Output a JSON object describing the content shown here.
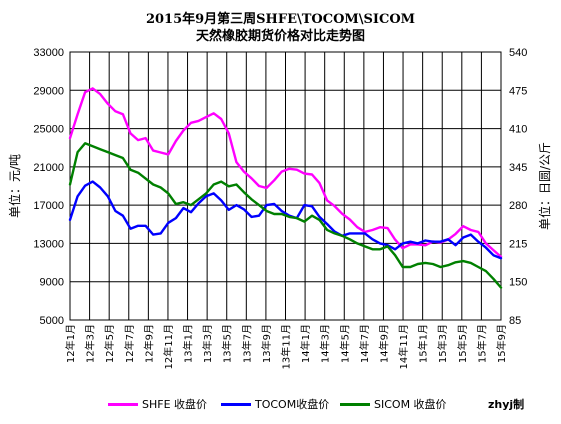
{
  "chart_data": {
    "type": "line",
    "title": "2015年9月第三周SHFE\\TOCOM\\SICOM",
    "subtitle": "天然橡胶期货价格对比走势图",
    "ylabel_left": "单位：元/吨",
    "ylabel_right": "单位：日圆/公斤",
    "ylim_left": [
      5000,
      33000
    ],
    "yticks_left": [
      5000,
      9000,
      13000,
      17000,
      21000,
      25000,
      29000,
      33000
    ],
    "ylim_right": [
      85,
      540
    ],
    "yticks_right": [
      85,
      150,
      215,
      280,
      345,
      410,
      475,
      540
    ],
    "x_tick_labels": [
      "12年1月",
      "12年3月",
      "12年5月",
      "12年7月",
      "12年9月",
      "12年11月",
      "13年1月",
      "13年3月",
      "13年5月",
      "13年7月",
      "13年9月",
      "13年11月",
      "14年1月",
      "14年3月",
      "14年5月",
      "14年7月",
      "14年9月",
      "14年11月",
      "15年1月",
      "15年3月",
      "15年5月",
      "15年7月",
      "15年9月"
    ],
    "grid": true,
    "legend_position": "bottom",
    "credit": "zhyj制",
    "series": [
      {
        "name": "SHFE 收盘价",
        "axis": "left",
        "color": "#ff00ff",
        "values": [
          24000,
          26500,
          28800,
          29200,
          28600,
          27600,
          26800,
          26500,
          24500,
          23800,
          24000,
          22700,
          22500,
          22300,
          23700,
          24800,
          25600,
          25800,
          26200,
          26600,
          26000,
          24500,
          21500,
          20500,
          19800,
          19000,
          18800,
          19600,
          20500,
          20800,
          20700,
          20300,
          20200,
          19300,
          17500,
          16900,
          16100,
          15500,
          14700,
          14200,
          14400,
          14700,
          14600,
          13400,
          12500,
          12900,
          12900,
          12800,
          13200,
          13100,
          13400,
          14000,
          14800,
          14400,
          14200,
          13000,
          12300,
          11600
        ]
      },
      {
        "name": "TOCOM收盘价",
        "axis": "right",
        "color": "#0000ff",
        "values": [
          255,
          295,
          313,
          320,
          310,
          295,
          270,
          262,
          240,
          245,
          245,
          230,
          232,
          250,
          258,
          275,
          268,
          283,
          295,
          300,
          288,
          272,
          280,
          273,
          260,
          262,
          280,
          282,
          270,
          262,
          258,
          280,
          278,
          260,
          248,
          235,
          228,
          232,
          232,
          232,
          222,
          215,
          212,
          205,
          215,
          218,
          215,
          220,
          218,
          218,
          222,
          212,
          225,
          230,
          218,
          208,
          195,
          190
        ]
      },
      {
        "name": "SICOM 收盘价",
        "axis": "right",
        "color": "#008000",
        "values": [
          315,
          370,
          385,
          380,
          375,
          370,
          365,
          360,
          340,
          335,
          325,
          315,
          310,
          300,
          282,
          285,
          280,
          290,
          300,
          315,
          320,
          312,
          315,
          302,
          290,
          280,
          270,
          265,
          265,
          260,
          258,
          252,
          262,
          255,
          238,
          232,
          228,
          222,
          215,
          210,
          205,
          205,
          210,
          195,
          175,
          175,
          180,
          182,
          180,
          175,
          178,
          183,
          185,
          182,
          175,
          168,
          155,
          140
        ]
      }
    ]
  }
}
